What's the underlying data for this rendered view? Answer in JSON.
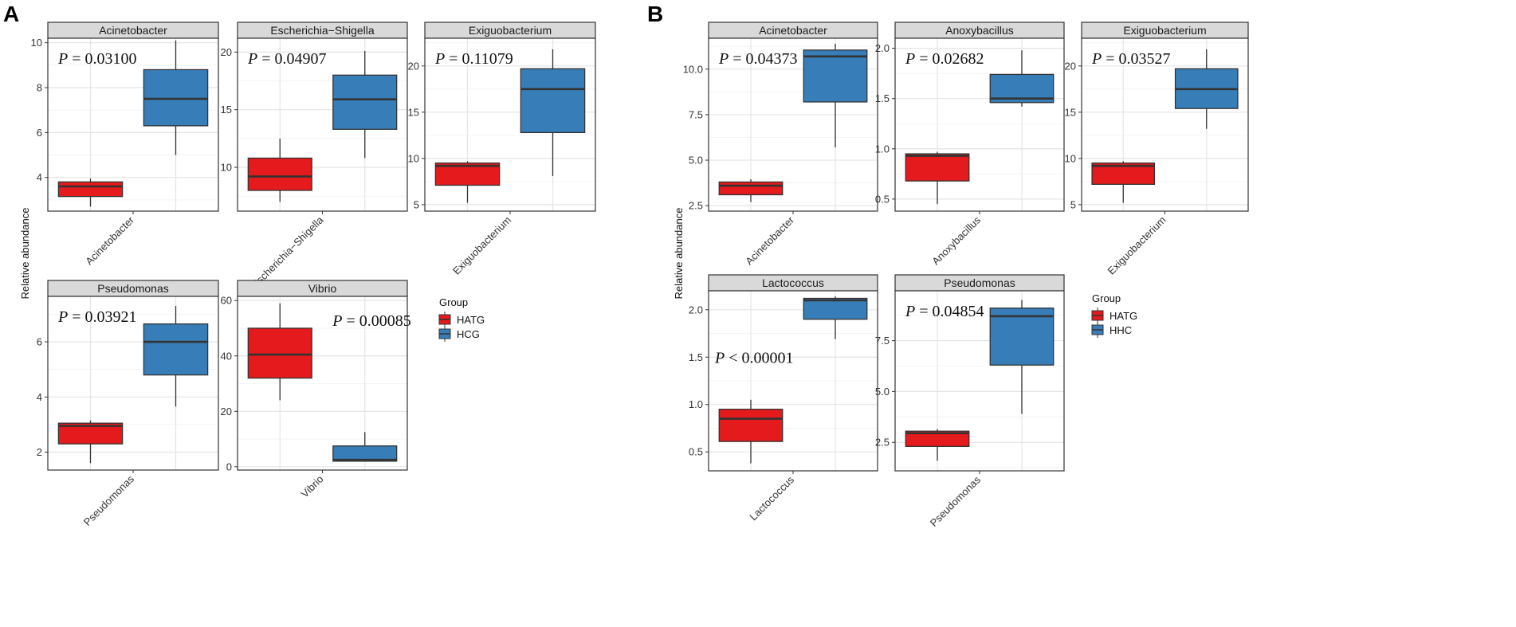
{
  "figures": [
    {
      "letter": "A",
      "ylabel": "Relative abundance",
      "legend": {
        "title": "Group",
        "items": [
          {
            "label": "HATG",
            "color": "#e41a1c"
          },
          {
            "label": "HCG",
            "color": "#377eb8"
          }
        ]
      }
    },
    {
      "letter": "B",
      "ylabel": "Relative abundance",
      "legend": {
        "title": "Group",
        "items": [
          {
            "label": "HATG",
            "color": "#e41a1c"
          },
          {
            "label": "HHC",
            "color": "#377eb8"
          }
        ]
      }
    }
  ],
  "chart_data": [
    {
      "type": "box",
      "figure": "A",
      "title": "Acinetobacter",
      "xlabel": "Acinetobacter",
      "p_label": "P",
      "p_value": "= 0.03100",
      "p_corner": "top-left",
      "ylim": [
        2.5,
        10.2
      ],
      "yticks": [
        4,
        6,
        8,
        10
      ],
      "boxes": [
        {
          "group": "HATG",
          "whisker_low": 2.7,
          "q1": 3.15,
          "median": 3.6,
          "q3": 3.8,
          "whisker_high": 3.95
        },
        {
          "group": "HCG",
          "whisker_low": 5.0,
          "q1": 6.3,
          "median": 7.5,
          "q3": 8.8,
          "whisker_high": 10.1
        }
      ]
    },
    {
      "type": "box",
      "figure": "A",
      "title": "Escherichia−Shigella",
      "xlabel": "Escherichia−Shigella",
      "p_label": "P",
      "p_value": "= 0.04907",
      "p_corner": "top-left",
      "ylim": [
        6.2,
        21.2
      ],
      "yticks": [
        10,
        15,
        20
      ],
      "boxes": [
        {
          "group": "HATG",
          "whisker_low": 7.0,
          "q1": 8.0,
          "median": 9.2,
          "q3": 10.8,
          "whisker_high": 12.5
        },
        {
          "group": "HCG",
          "whisker_low": 10.8,
          "q1": 13.3,
          "median": 15.9,
          "q3": 18.0,
          "whisker_high": 20.1
        }
      ]
    },
    {
      "type": "box",
      "figure": "A",
      "title": "Exiguobacterium",
      "xlabel": "Exiguobacterium",
      "p_label": "P",
      "p_value": "= 0.11079",
      "p_corner": "top-left",
      "ylim": [
        4.3,
        23.0
      ],
      "yticks": [
        5,
        10,
        15,
        20
      ],
      "boxes": [
        {
          "group": "HATG",
          "whisker_low": 5.2,
          "q1": 7.1,
          "median": 9.2,
          "q3": 9.5,
          "whisker_high": 9.7
        },
        {
          "group": "HCG",
          "whisker_low": 8.1,
          "q1": 12.8,
          "median": 17.5,
          "q3": 19.7,
          "whisker_high": 21.8
        }
      ]
    },
    {
      "type": "box",
      "figure": "A",
      "title": "Pseudomonas",
      "xlabel": "Pseudomonas",
      "p_label": "P",
      "p_value": "= 0.03921",
      "p_corner": "top-left",
      "ylim": [
        1.35,
        7.65
      ],
      "yticks": [
        2,
        4,
        6
      ],
      "boxes": [
        {
          "group": "HATG",
          "whisker_low": 1.6,
          "q1": 2.3,
          "median": 2.95,
          "q3": 3.05,
          "whisker_high": 3.15
        },
        {
          "group": "HCG",
          "whisker_low": 3.65,
          "q1": 4.8,
          "median": 6.0,
          "q3": 6.65,
          "whisker_high": 7.3
        }
      ]
    },
    {
      "type": "box",
      "figure": "A",
      "title": "Vibrio",
      "xlabel": "Vibrio",
      "p_label": "P",
      "p_value": "= 0.00085",
      "p_corner": "top-right",
      "ylim": [
        -1.2,
        61.5
      ],
      "yticks": [
        0,
        20,
        40,
        60
      ],
      "boxes": [
        {
          "group": "HATG",
          "whisker_low": 24.0,
          "q1": 32.0,
          "median": 40.5,
          "q3": 50.0,
          "whisker_high": 59.0
        },
        {
          "group": "HCG",
          "whisker_low": 1.8,
          "q1": 2.0,
          "median": 2.5,
          "q3": 7.5,
          "whisker_high": 12.5
        }
      ]
    },
    {
      "type": "box",
      "figure": "B",
      "title": "Acinetobacter",
      "xlabel": "Acinetobacter",
      "p_label": "P",
      "p_value": "= 0.04373",
      "p_corner": "top-left",
      "ylim": [
        2.2,
        11.7
      ],
      "yticks": [
        2.5,
        5.0,
        7.5,
        10.0
      ],
      "tick_decimals": 1,
      "boxes": [
        {
          "group": "HATG",
          "whisker_low": 2.7,
          "q1": 3.1,
          "median": 3.6,
          "q3": 3.8,
          "whisker_high": 3.95
        },
        {
          "group": "HHC",
          "whisker_low": 5.7,
          "q1": 8.2,
          "median": 10.7,
          "q3": 11.05,
          "whisker_high": 11.4
        }
      ]
    },
    {
      "type": "box",
      "figure": "B",
      "title": "Anoxybacillus",
      "xlabel": "Anoxybacillus",
      "p_label": "P",
      "p_value": "= 0.02682",
      "p_corner": "top-left",
      "ylim": [
        0.38,
        2.1
      ],
      "yticks": [
        0.5,
        1.0,
        1.5,
        2.0
      ],
      "tick_decimals": 1,
      "boxes": [
        {
          "group": "HATG",
          "whisker_low": 0.45,
          "q1": 0.68,
          "median": 0.93,
          "q3": 0.95,
          "whisker_high": 0.97
        },
        {
          "group": "HHC",
          "whisker_low": 1.42,
          "q1": 1.46,
          "median": 1.5,
          "q3": 1.74,
          "whisker_high": 1.98
        }
      ]
    },
    {
      "type": "box",
      "figure": "B",
      "title": "Exiguobacterium",
      "xlabel": "Exiguobacterium",
      "p_label": "P",
      "p_value": "= 0.03527",
      "p_corner": "top-left",
      "ylim": [
        4.3,
        23.0
      ],
      "yticks": [
        5,
        10,
        15,
        20
      ],
      "boxes": [
        {
          "group": "HATG",
          "whisker_low": 5.2,
          "q1": 7.2,
          "median": 9.2,
          "q3": 9.5,
          "whisker_high": 9.7
        },
        {
          "group": "HHC",
          "whisker_low": 13.2,
          "q1": 15.4,
          "median": 17.5,
          "q3": 19.7,
          "whisker_high": 21.8
        }
      ]
    },
    {
      "type": "box",
      "figure": "B",
      "title": "Lactococcus",
      "xlabel": "Lactococcus",
      "p_label": "P",
      "p_value": "< 0.00001",
      "p_corner": "mid-left",
      "ylim": [
        0.3,
        2.2
      ],
      "yticks": [
        0.5,
        1.0,
        1.5,
        2.0
      ],
      "tick_decimals": 1,
      "boxes": [
        {
          "group": "HATG",
          "whisker_low": 0.38,
          "q1": 0.61,
          "median": 0.85,
          "q3": 0.95,
          "whisker_high": 1.05
        },
        {
          "group": "HHC",
          "whisker_low": 1.69,
          "q1": 1.9,
          "median": 2.1,
          "q3": 2.12,
          "whisker_high": 2.14
        }
      ]
    },
    {
      "type": "box",
      "figure": "B",
      "title": "Pseudomonas",
      "xlabel": "Pseudomonas",
      "p_label": "P",
      "p_value": "= 0.04854",
      "p_corner": "top-left",
      "ylim": [
        1.1,
        9.95
      ],
      "yticks": [
        2.5,
        5.0,
        7.5
      ],
      "tick_decimals": 1,
      "boxes": [
        {
          "group": "HATG",
          "whisker_low": 1.6,
          "q1": 2.3,
          "median": 2.95,
          "q3": 3.05,
          "whisker_high": 3.15
        },
        {
          "group": "HHC",
          "whisker_low": 3.9,
          "q1": 6.3,
          "median": 8.7,
          "q3": 9.1,
          "whisker_high": 9.5
        }
      ]
    }
  ]
}
